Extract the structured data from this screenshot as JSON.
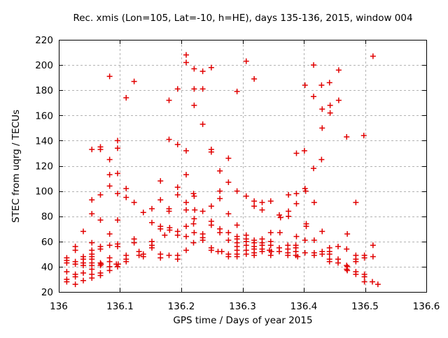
{
  "title": "Rec. xmis (Lon=105, Lat=-10, h=HE), days 135-136, 2015, window 004",
  "chart_data": {
    "type": "scatter",
    "title": "Rec. xmis (Lon=105, Lat=-10, h=HE), days 135-136, 2015, window 004",
    "xlabel": "GPS time / Days of year 2015",
    "ylabel": "STEC from uqrg / TECUs",
    "xlim": [
      136.0,
      136.6
    ],
    "ylim": [
      20,
      220
    ],
    "xticks": {
      "values": [
        136.0,
        136.1,
        136.2,
        136.3,
        136.4,
        136.5,
        136.6
      ],
      "labels": [
        "136",
        "136.1",
        "136.2",
        "136.3",
        "136.4",
        "136.5",
        "136.6"
      ]
    },
    "yticks": {
      "values": [
        20,
        40,
        60,
        80,
        100,
        120,
        140,
        160,
        180,
        200,
        220
      ],
      "labels": [
        "20",
        "40",
        "60",
        "80",
        "100",
        "120",
        "140",
        "160",
        "180",
        "200",
        "220"
      ]
    },
    "grid": true,
    "legend": "none",
    "marker": "plus",
    "colors": {
      "marker": "#e10000",
      "grid": "#b3b3b3",
      "axis": "#000000",
      "background": "#ffffff"
    },
    "points": [
      [
        136.013,
        47
      ],
      [
        136.013,
        45
      ],
      [
        136.013,
        43
      ],
      [
        136.013,
        36
      ],
      [
        136.013,
        30
      ],
      [
        136.013,
        28
      ],
      [
        136.027,
        56
      ],
      [
        136.027,
        53
      ],
      [
        136.027,
        44
      ],
      [
        136.027,
        42
      ],
      [
        136.027,
        34
      ],
      [
        136.027,
        32
      ],
      [
        136.027,
        26
      ],
      [
        136.04,
        68
      ],
      [
        136.04,
        48
      ],
      [
        136.04,
        46
      ],
      [
        136.04,
        43
      ],
      [
        136.04,
        41
      ],
      [
        136.04,
        35
      ],
      [
        136.04,
        29
      ],
      [
        136.054,
        133
      ],
      [
        136.054,
        93
      ],
      [
        136.054,
        82
      ],
      [
        136.054,
        59
      ],
      [
        136.054,
        53
      ],
      [
        136.054,
        50
      ],
      [
        136.054,
        48
      ],
      [
        136.054,
        46
      ],
      [
        136.054,
        43
      ],
      [
        136.054,
        41
      ],
      [
        136.054,
        38
      ],
      [
        136.054,
        34
      ],
      [
        136.054,
        31
      ],
      [
        136.068,
        135
      ],
      [
        136.068,
        133
      ],
      [
        136.068,
        97
      ],
      [
        136.068,
        77
      ],
      [
        136.068,
        56
      ],
      [
        136.068,
        54
      ],
      [
        136.068,
        43
      ],
      [
        136.069,
        42
      ],
      [
        136.068,
        41
      ],
      [
        136.068,
        35
      ],
      [
        136.068,
        33
      ],
      [
        136.083,
        191
      ],
      [
        136.083,
        125
      ],
      [
        136.083,
        113
      ],
      [
        136.083,
        104
      ],
      [
        136.083,
        66
      ],
      [
        136.083,
        57
      ],
      [
        136.083,
        47
      ],
      [
        136.083,
        44
      ],
      [
        136.083,
        40
      ],
      [
        136.083,
        37
      ],
      [
        136.096,
        140
      ],
      [
        136.096,
        134
      ],
      [
        136.096,
        114
      ],
      [
        136.096,
        98
      ],
      [
        136.096,
        77
      ],
      [
        136.096,
        58
      ],
      [
        136.096,
        56
      ],
      [
        136.094,
        42
      ],
      [
        136.097,
        42
      ],
      [
        136.096,
        40
      ],
      [
        136.11,
        174
      ],
      [
        136.11,
        102
      ],
      [
        136.11,
        95
      ],
      [
        136.11,
        49
      ],
      [
        136.11,
        46
      ],
      [
        136.11,
        44
      ],
      [
        136.123,
        187
      ],
      [
        136.123,
        91
      ],
      [
        136.123,
        62
      ],
      [
        136.123,
        59
      ],
      [
        136.131,
        52
      ],
      [
        136.131,
        49
      ],
      [
        136.138,
        83
      ],
      [
        136.138,
        50
      ],
      [
        136.138,
        48
      ],
      [
        136.152,
        86
      ],
      [
        136.152,
        75
      ],
      [
        136.152,
        60
      ],
      [
        136.152,
        57
      ],
      [
        136.152,
        55
      ],
      [
        136.166,
        108
      ],
      [
        136.166,
        93
      ],
      [
        136.166,
        72
      ],
      [
        136.166,
        70
      ],
      [
        136.166,
        50
      ],
      [
        136.166,
        47
      ],
      [
        136.173,
        65
      ],
      [
        136.18,
        172
      ],
      [
        136.18,
        141
      ],
      [
        136.18,
        86
      ],
      [
        136.18,
        84
      ],
      [
        136.181,
        71
      ],
      [
        136.181,
        69
      ],
      [
        136.18,
        49
      ],
      [
        136.194,
        181
      ],
      [
        136.194,
        137
      ],
      [
        136.194,
        103
      ],
      [
        136.194,
        97
      ],
      [
        136.194,
        68
      ],
      [
        136.194,
        65
      ],
      [
        136.194,
        49
      ],
      [
        136.194,
        46
      ],
      [
        136.208,
        208
      ],
      [
        136.208,
        202
      ],
      [
        136.208,
        132
      ],
      [
        136.208,
        113
      ],
      [
        136.208,
        91
      ],
      [
        136.208,
        85
      ],
      [
        136.208,
        72
      ],
      [
        136.208,
        64
      ],
      [
        136.208,
        53
      ],
      [
        136.221,
        197
      ],
      [
        136.221,
        181
      ],
      [
        136.221,
        168
      ],
      [
        136.22,
        98
      ],
      [
        136.221,
        96
      ],
      [
        136.222,
        85
      ],
      [
        136.221,
        78
      ],
      [
        136.22,
        74
      ],
      [
        136.221,
        67
      ],
      [
        136.22,
        59
      ],
      [
        136.235,
        195
      ],
      [
        136.235,
        181
      ],
      [
        136.235,
        153
      ],
      [
        136.235,
        84
      ],
      [
        136.235,
        66
      ],
      [
        136.235,
        63
      ],
      [
        136.235,
        61
      ],
      [
        136.249,
        198
      ],
      [
        136.249,
        133
      ],
      [
        136.249,
        131
      ],
      [
        136.249,
        88
      ],
      [
        136.249,
        76
      ],
      [
        136.249,
        73
      ],
      [
        136.249,
        55
      ],
      [
        136.249,
        53
      ],
      [
        136.263,
        116
      ],
      [
        136.263,
        100
      ],
      [
        136.263,
        94
      ],
      [
        136.263,
        70
      ],
      [
        136.263,
        67
      ],
      [
        136.26,
        52
      ],
      [
        136.266,
        52
      ],
      [
        136.277,
        126
      ],
      [
        136.277,
        107
      ],
      [
        136.277,
        82
      ],
      [
        136.277,
        67
      ],
      [
        136.277,
        61
      ],
      [
        136.277,
        50
      ],
      [
        136.277,
        48
      ],
      [
        136.291,
        179
      ],
      [
        136.291,
        100
      ],
      [
        136.291,
        73
      ],
      [
        136.291,
        64
      ],
      [
        136.291,
        62
      ],
      [
        136.291,
        59
      ],
      [
        136.291,
        56
      ],
      [
        136.291,
        53
      ],
      [
        136.291,
        50
      ],
      [
        136.291,
        48
      ],
      [
        136.306,
        203
      ],
      [
        136.306,
        96
      ],
      [
        136.306,
        65
      ],
      [
        136.306,
        62
      ],
      [
        136.306,
        60
      ],
      [
        136.306,
        57
      ],
      [
        136.306,
        53
      ],
      [
        136.306,
        50
      ],
      [
        136.319,
        189
      ],
      [
        136.319,
        92
      ],
      [
        136.319,
        88
      ],
      [
        136.319,
        61
      ],
      [
        136.319,
        59
      ],
      [
        136.319,
        56
      ],
      [
        136.319,
        54
      ],
      [
        136.319,
        51
      ],
      [
        136.319,
        49
      ],
      [
        136.332,
        91
      ],
      [
        136.332,
        85
      ],
      [
        136.332,
        62
      ],
      [
        136.332,
        59
      ],
      [
        136.332,
        57
      ],
      [
        136.332,
        54
      ],
      [
        136.332,
        52
      ],
      [
        136.346,
        92
      ],
      [
        136.346,
        67
      ],
      [
        136.346,
        60
      ],
      [
        136.346,
        57
      ],
      [
        136.344,
        53
      ],
      [
        136.347,
        52
      ],
      [
        136.346,
        49
      ],
      [
        136.36,
        81
      ],
      [
        136.362,
        79
      ],
      [
        136.361,
        67
      ],
      [
        136.36,
        55
      ],
      [
        136.36,
        52
      ],
      [
        136.375,
        97
      ],
      [
        136.375,
        84
      ],
      [
        136.375,
        80
      ],
      [
        136.374,
        57
      ],
      [
        136.374,
        54
      ],
      [
        136.374,
        51
      ],
      [
        136.374,
        49
      ],
      [
        136.388,
        130
      ],
      [
        136.388,
        98
      ],
      [
        136.388,
        90
      ],
      [
        136.388,
        64
      ],
      [
        136.387,
        57
      ],
      [
        136.387,
        55
      ],
      [
        136.387,
        52
      ],
      [
        136.387,
        49
      ],
      [
        136.39,
        48
      ],
      [
        136.402,
        184
      ],
      [
        136.401,
        132
      ],
      [
        136.402,
        102
      ],
      [
        136.403,
        100
      ],
      [
        136.404,
        74
      ],
      [
        136.404,
        72
      ],
      [
        136.402,
        61
      ],
      [
        136.402,
        51
      ],
      [
        136.416,
        200
      ],
      [
        136.416,
        175
      ],
      [
        136.416,
        118
      ],
      [
        136.417,
        91
      ],
      [
        136.417,
        61
      ],
      [
        136.417,
        51
      ],
      [
        136.417,
        49
      ],
      [
        136.429,
        184
      ],
      [
        136.43,
        165
      ],
      [
        136.43,
        150
      ],
      [
        136.429,
        125
      ],
      [
        136.43,
        68
      ],
      [
        136.43,
        52
      ],
      [
        136.43,
        50
      ],
      [
        136.442,
        186
      ],
      [
        136.443,
        168
      ],
      [
        136.443,
        162
      ],
      [
        136.442,
        55
      ],
      [
        136.442,
        52
      ],
      [
        136.442,
        50
      ],
      [
        136.442,
        46
      ],
      [
        136.442,
        44
      ],
      [
        136.457,
        196
      ],
      [
        136.457,
        172
      ],
      [
        136.456,
        56
      ],
      [
        136.456,
        46
      ],
      [
        136.456,
        43
      ],
      [
        136.47,
        143
      ],
      [
        136.471,
        66
      ],
      [
        136.47,
        54
      ],
      [
        136.47,
        41
      ],
      [
        136.471,
        40
      ],
      [
        136.47,
        38
      ],
      [
        136.471,
        37
      ],
      [
        136.485,
        91
      ],
      [
        136.485,
        49
      ],
      [
        136.485,
        46
      ],
      [
        136.485,
        44
      ],
      [
        136.485,
        36
      ],
      [
        136.485,
        34
      ],
      [
        136.498,
        144
      ],
      [
        136.499,
        49
      ],
      [
        136.499,
        47
      ],
      [
        136.499,
        34
      ],
      [
        136.499,
        32
      ],
      [
        136.499,
        28
      ],
      [
        136.513,
        207
      ],
      [
        136.513,
        57
      ],
      [
        136.513,
        48
      ],
      [
        136.512,
        28
      ],
      [
        136.521,
        26
      ]
    ]
  }
}
